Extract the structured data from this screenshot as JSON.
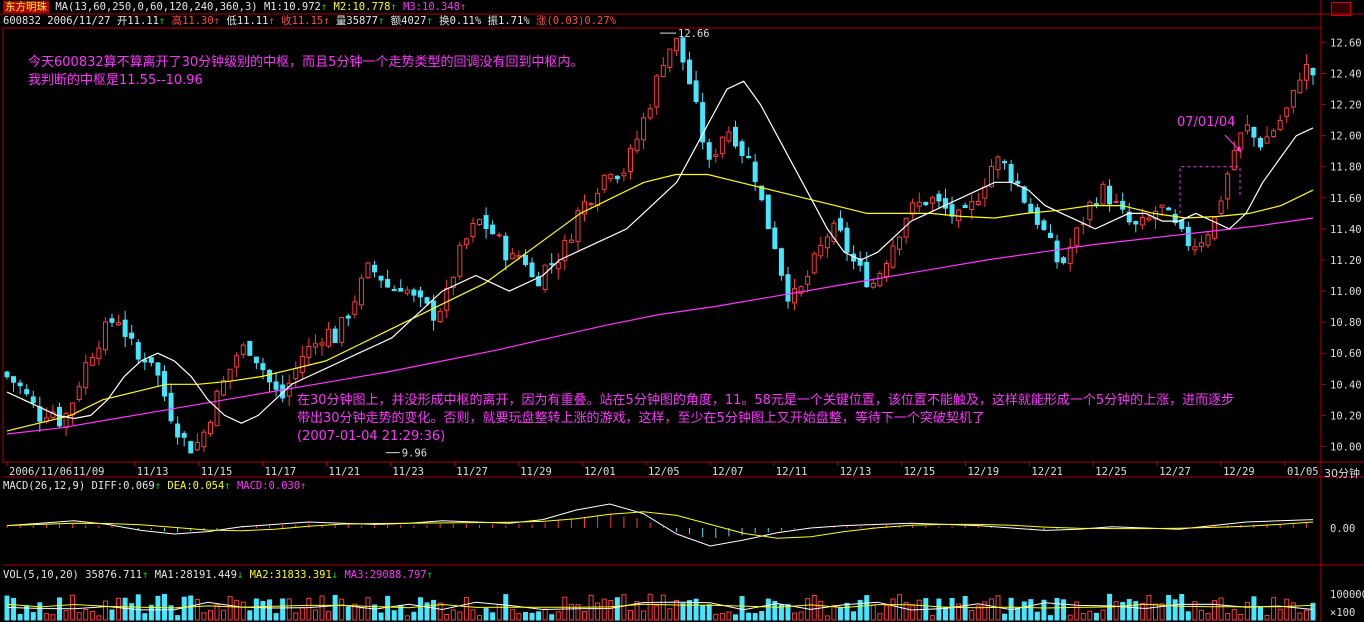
{
  "header": {
    "stock_name": "东方明珠",
    "ma_label": "MA(13,60,250,0,60,120,240,360,3)",
    "m1": "M1:10.972",
    "m2": "M2:10.778",
    "m3": "M3:10.348",
    "code": "600832",
    "date": "2006/11/27",
    "open": "开11.11",
    "high": "高11.30",
    "low": "低11.11",
    "close": "收11.15",
    "volume": "量35877",
    "amount": "额4027",
    "turnover": "换0.11%",
    "amplitude": "振1.71%",
    "change": "涨(0.03)0.27%",
    "up_arrow": "↑",
    "down_arrow": "↓"
  },
  "annotations": {
    "note1_line1": "今天600832算不算离开了30分钟级别的中枢，而且5分钟一个走势类型的回调没有回到中枢内。",
    "note1_line2": "我判断的中枢是11.55--10.96",
    "note2_line1": "在30分钟图上，并没形成中枢的离开，因为有重叠。站在5分钟图的角度，11。58元是一个关键位置，该位置不能触及，这样就能形成一个5分钟的上涨，进而逐步",
    "note2_line2": "带出30分钟走势的变化。否则，就要玩盘整转上涨的游戏，这样，至少在5分钟图上又开始盘整，等待下一个突破契机了",
    "note2_line3": "(2007-01-04 21:29:36)",
    "date_tag": "07/01/04"
  },
  "period_label": "30分钟",
  "macd_panel": {
    "title": "MACD(26,12,9)",
    "diff": "DIFF:0.069",
    "dea": "DEA:0.054",
    "macd": "MACD:0.030",
    "axis_label": "0.00"
  },
  "vol_panel": {
    "title": "VOL(5,10,20)",
    "vol": "35876.711",
    "ma1": "MA1:28191.449",
    "ma2": "MA2:31833.391",
    "ma3": "MA3:29088.797",
    "axis_labels": [
      "100000",
      "×100"
    ]
  },
  "colors": {
    "up": "#ff3b3b",
    "down": "#45e6ff",
    "ma13": "#ffffff",
    "ma60": "#ffff00",
    "ma250": "#ff33ff",
    "frame": "#b00000",
    "annotation": "#ff33ff"
  },
  "chart_data": {
    "type": "candlestick",
    "x_tick_labels": [
      "2006/11/06",
      "11/09",
      "11/13",
      "11/15",
      "11/17",
      "11/21",
      "11/23",
      "11/27",
      "11/29",
      "12/01",
      "12/05",
      "12/07",
      "12/11",
      "12/13",
      "12/15",
      "12/19",
      "12/21",
      "12/25",
      "12/27",
      "12/29",
      "01/05"
    ],
    "y_ticks": [
      10.0,
      10.2,
      10.4,
      10.6,
      10.8,
      11.0,
      11.2,
      11.4,
      11.6,
      11.8,
      12.0,
      12.2,
      12.4,
      12.6
    ],
    "ylim": [
      9.9,
      12.68
    ],
    "annotated_high": 12.66,
    "annotated_low": 9.96,
    "zhongshu_range": [
      10.96,
      11.55
    ],
    "key_level": 11.58,
    "close_path": [
      10.45,
      10.4,
      10.3,
      10.2,
      10.25,
      10.15,
      10.3,
      10.5,
      10.65,
      10.75,
      10.85,
      10.7,
      10.55,
      10.6,
      10.4,
      10.2,
      10.05,
      9.98,
      10.1,
      10.3,
      10.45,
      10.6,
      10.65,
      10.55,
      10.4,
      10.3,
      10.45,
      10.6,
      10.65,
      10.75,
      10.7,
      10.85,
      11.0,
      11.15,
      11.1,
      11.0,
      11.05,
      10.95,
      10.9,
      10.85,
      10.95,
      11.2,
      11.35,
      11.45,
      11.4,
      11.3,
      11.2,
      11.25,
      11.05,
      11.15,
      11.2,
      11.3,
      11.5,
      11.6,
      11.7,
      11.8,
      11.75,
      11.9,
      12.1,
      12.3,
      12.55,
      12.6,
      12.4,
      12.1,
      11.8,
      12.0,
      12.05,
      11.9,
      11.8,
      11.5,
      11.3,
      11.0,
      10.95,
      11.1,
      11.25,
      11.4,
      11.35,
      11.2,
      11.1,
      11.05,
      11.2,
      11.35,
      11.5,
      11.55,
      11.6,
      11.55,
      11.5,
      11.45,
      11.55,
      11.7,
      11.85,
      11.8,
      11.7,
      11.55,
      11.45,
      11.3,
      11.15,
      11.3,
      11.45,
      11.6,
      11.65,
      11.55,
      11.45,
      11.4,
      11.45,
      11.55,
      11.45,
      11.35,
      11.3,
      11.35,
      11.45,
      11.7,
      11.95,
      12.05,
      11.95,
      12.0,
      12.1,
      12.2,
      12.45,
      12.4
    ],
    "ma13_path": [
      10.35,
      10.3,
      10.25,
      10.2,
      10.18,
      10.2,
      10.3,
      10.45,
      10.55,
      10.6,
      10.55,
      10.45,
      10.3,
      10.2,
      10.15,
      10.2,
      10.3,
      10.4,
      10.45,
      10.5,
      10.55,
      10.6,
      10.65,
      10.7,
      10.8,
      10.9,
      11.0,
      11.05,
      11.1,
      11.05,
      11.0,
      11.05,
      11.1,
      11.2,
      11.25,
      11.3,
      11.35,
      11.4,
      11.5,
      11.6,
      11.7,
      11.9,
      12.1,
      12.3,
      12.35,
      12.2,
      12.0,
      11.8,
      11.6,
      11.4,
      11.25,
      11.2,
      11.25,
      11.35,
      11.45,
      11.5,
      11.55,
      11.6,
      11.65,
      11.7,
      11.7,
      11.65,
      11.55,
      11.5,
      11.45,
      11.4,
      11.45,
      11.5,
      11.5,
      11.45,
      11.45,
      11.5,
      11.45,
      11.4,
      11.5,
      11.7,
      11.85,
      12.0,
      12.05
    ],
    "ma60_path": [
      10.1,
      10.15,
      10.2,
      10.3,
      10.35,
      10.4,
      10.4,
      10.42,
      10.45,
      10.5,
      10.55,
      10.65,
      10.75,
      10.85,
      10.95,
      11.05,
      11.2,
      11.35,
      11.5,
      11.6,
      11.7,
      11.75,
      11.75,
      11.7,
      11.65,
      11.6,
      11.55,
      11.5,
      11.5,
      11.5,
      11.48,
      11.47,
      11.5,
      11.52,
      11.55,
      11.55,
      11.5,
      11.47,
      11.48,
      11.5,
      11.55,
      11.65
    ],
    "ma250_path": [
      10.08,
      10.12,
      10.18,
      10.24,
      10.3,
      10.36,
      10.42,
      10.48,
      10.55,
      10.62,
      10.7,
      10.78,
      10.85,
      10.9,
      10.96,
      11.02,
      11.08,
      11.14,
      11.2,
      11.25,
      11.3,
      11.34,
      11.38,
      11.42,
      11.47
    ]
  }
}
